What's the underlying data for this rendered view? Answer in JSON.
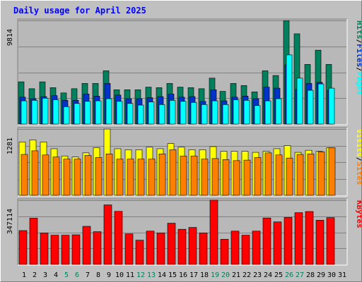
{
  "chart_data": {
    "title": "Daily usage for April 2025",
    "type": "bar",
    "categories": [
      "1",
      "2",
      "3",
      "4",
      "5",
      "6",
      "7",
      "8",
      "9",
      "10",
      "11",
      "12",
      "13",
      "14",
      "15",
      "16",
      "17",
      "18",
      "19",
      "20",
      "21",
      "22",
      "23",
      "24",
      "25",
      "26",
      "27",
      "28",
      "29",
      "30",
      "31"
    ],
    "weekend_days": [
      "5",
      "6",
      "12",
      "13",
      "19",
      "20",
      "26",
      "27"
    ],
    "colors": {
      "background": "#c0c0c0",
      "plot_area": "#b8b8b8",
      "hits": "#00805c",
      "files": "#0033cc",
      "pages": "#00ffff",
      "visits": "#ffff00",
      "sites": "#ff8000",
      "kbytes": "#ff0000",
      "weekday_label": "#000000",
      "weekend_label": "#00805c",
      "title": "#0000ff"
    },
    "panels": [
      {
        "id": "hits-files-pages",
        "max_label": "9814",
        "ylim": [
          0,
          9814
        ],
        "grid": true,
        "legend": [
          {
            "text": "Hits",
            "color": "#00805c"
          },
          {
            "text": "/",
            "color": "#000000"
          },
          {
            "text": "Files",
            "color": "#0033cc"
          },
          {
            "text": "/",
            "color": "#000000"
          },
          {
            "text": "Pages",
            "color": "#00ffff"
          }
        ],
        "series": [
          {
            "name": "Hits",
            "color": "#00805c",
            "values": [
              4000,
              3350,
              4000,
              3450,
              2950,
              3350,
              3850,
              3850,
              5050,
              3250,
              3250,
              3250,
              3500,
              3450,
              3850,
              3500,
              3450,
              3350,
              4350,
              3100,
              3850,
              3650,
              3050,
              5050,
              4600,
              9800,
              8550,
              5650,
              7000,
              5650,
              0
            ]
          },
          {
            "name": "Files",
            "color": "#0033cc",
            "values": [
              2550,
              2400,
              2600,
              2700,
              2250,
              2250,
              2850,
              2650,
              3850,
              2750,
              2400,
              2400,
              2500,
              2600,
              2850,
              2550,
              2600,
              2150,
              3250,
              2200,
              2550,
              2650,
              2400,
              3500,
              3400,
              5600,
              3300,
              3850,
              3950,
              3200,
              0
            ]
          },
          {
            "name": "Pages",
            "color": "#00ffff",
            "values": [
              2200,
              2250,
              2450,
              2300,
              1650,
              1950,
              2150,
              2200,
              2400,
              2150,
              1950,
              1800,
              2100,
              1850,
              2250,
              2150,
              2050,
              1850,
              2200,
              1850,
              2300,
              2250,
              1750,
              2200,
              2400,
              6550,
              4350,
              3200,
              3800,
              3400,
              0
            ]
          }
        ]
      },
      {
        "id": "visits-sites",
        "max_label": "1281",
        "ylim": [
          0,
          1281
        ],
        "grid": true,
        "legend": [
          {
            "text": "Visits",
            "color": "#ffff00"
          },
          {
            "text": "/",
            "color": "#000000"
          },
          {
            "text": "Sites",
            "color": "#ff8000"
          }
        ],
        "series": [
          {
            "name": "Visits",
            "color": "#ffff00",
            "values": [
              1030,
              1070,
              1030,
              900,
              760,
              740,
              820,
              920,
              1280,
              900,
              880,
              880,
              930,
              900,
              1000,
              930,
              880,
              880,
              940,
              850,
              850,
              850,
              830,
              850,
              900,
              960,
              830,
              870,
              850,
              920,
              0
            ]
          },
          {
            "name": "Sites",
            "color": "#ff8000",
            "values": [
              790,
              860,
              780,
              740,
              700,
              700,
              770,
              730,
              800,
              700,
              700,
              700,
              700,
              800,
              880,
              760,
              760,
              700,
              710,
              690,
              670,
              680,
              730,
              820,
              780,
              720,
              790,
              800,
              840,
              920,
              0
            ]
          }
        ]
      },
      {
        "id": "kbytes",
        "max_label": "347114",
        "ylim": [
          0,
          347114
        ],
        "grid": true,
        "legend": [
          {
            "text": "KBytes",
            "color": "#ff0000"
          }
        ],
        "series": [
          {
            "name": "KBytes",
            "color": "#ff0000",
            "values": [
              183000,
              250000,
              170000,
              158000,
              158000,
              160000,
              206000,
              177000,
              322000,
              287000,
              165000,
              131000,
              180000,
              170000,
              223000,
              190000,
              200000,
              170000,
              347114,
              136000,
              180000,
              158000,
              180000,
              251000,
              230000,
              254000,
              280000,
              286000,
              239000,
              253000,
              0
            ]
          }
        ]
      }
    ]
  }
}
